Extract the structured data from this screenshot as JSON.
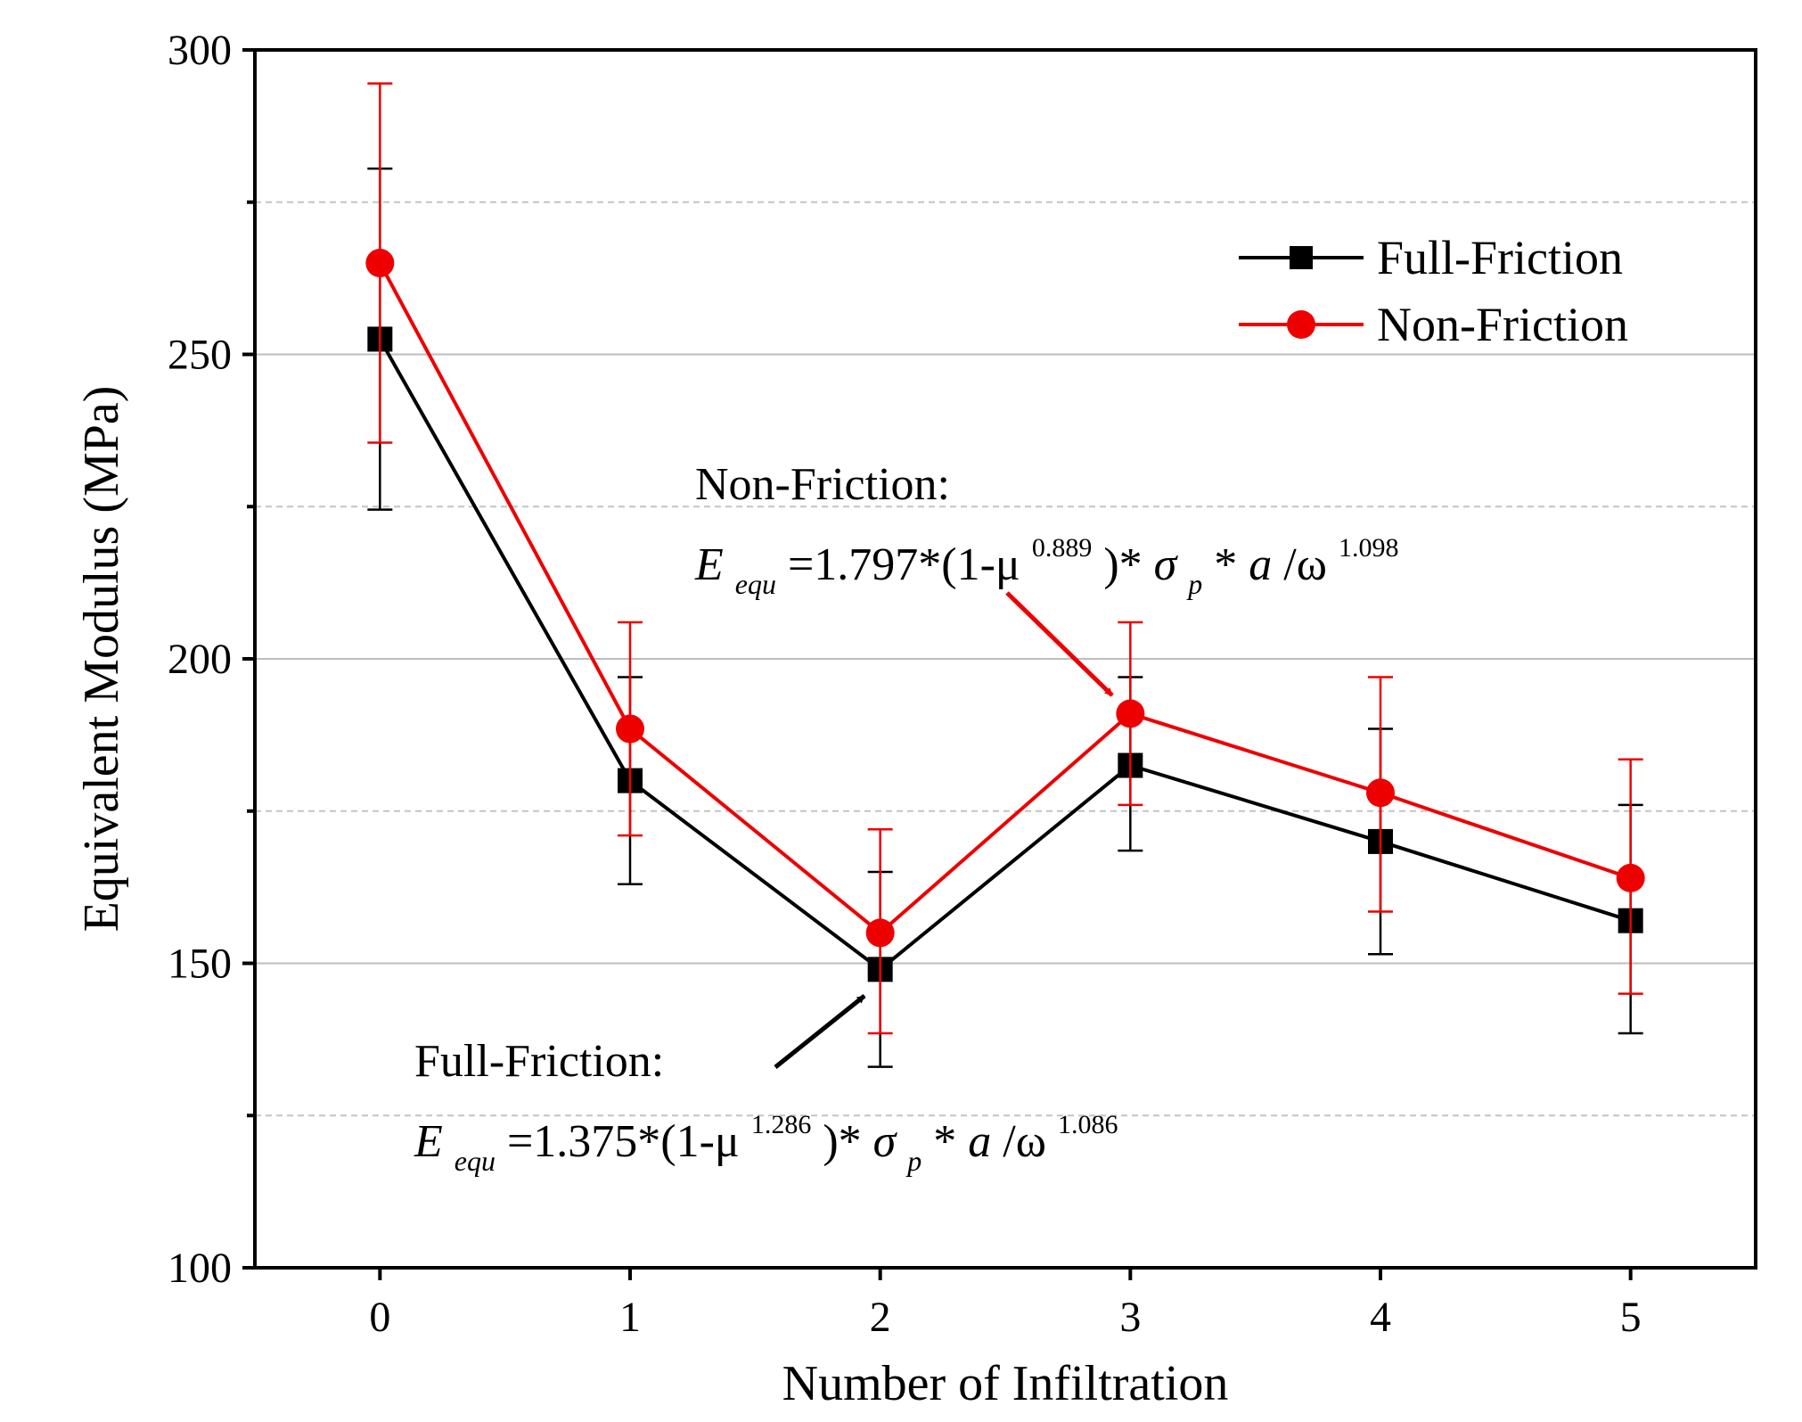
{
  "chart_data": {
    "type": "line",
    "title": "",
    "xlabel": "Number of Infiltration",
    "ylabel": "Equivalent Modulus (MPa)",
    "x": [
      0,
      1,
      2,
      3,
      4,
      5
    ],
    "xlim": [
      -0.5,
      5.5
    ],
    "ylim": [
      100,
      300
    ],
    "yticks": [
      100,
      150,
      200,
      250,
      300
    ],
    "ygrid_major": [
      150,
      200,
      250
    ],
    "ygrid_minor": [
      125,
      175,
      225,
      275
    ],
    "grid": true,
    "legend_position": "top-right",
    "series": [
      {
        "name": "Full-Friction",
        "color": "#000000",
        "marker": "square",
        "values": [
          252.5,
          180.0,
          149.0,
          182.5,
          170.0,
          157.0
        ],
        "err_low": [
          224.5,
          163.0,
          133.0,
          168.5,
          151.5,
          138.5
        ],
        "err_high": [
          280.5,
          197.0,
          165.0,
          197.0,
          188.5,
          176.0
        ]
      },
      {
        "name": "Non-Friction",
        "color": "#ee0000",
        "marker": "circle",
        "values": [
          265.0,
          188.5,
          155.0,
          191.0,
          178.0,
          164.0
        ],
        "err_low": [
          235.5,
          171.0,
          138.5,
          176.0,
          158.5,
          145.0
        ],
        "err_high": [
          294.5,
          206.0,
          172.0,
          206.0,
          197.0,
          183.5
        ]
      }
    ],
    "annotations": {
      "non_friction": {
        "title": "Non-Friction:",
        "E": "E",
        "sub_equ": "equ",
        "eq1": "=1.797*(1-μ",
        "exp1": "0.889",
        "eq2": ")*",
        "sigma": "σ",
        "sub_p": "p",
        "star": "*",
        "a": "a",
        "omega": "/ω",
        "exp2": "1.098",
        "arrow_color": "#ee0000",
        "points_to_x": 3
      },
      "full_friction": {
        "title": "Full-Friction:",
        "E": "E",
        "sub_equ": "equ",
        "eq1": "=1.375*(1-μ",
        "exp1": "1.286",
        "eq2": ")*",
        "sigma": "σ",
        "sub_p": "p",
        "star": "*",
        "a": "a",
        "omega": "/ω",
        "exp2": "1.086",
        "arrow_color": "#000000",
        "points_to_x": 2
      }
    }
  }
}
